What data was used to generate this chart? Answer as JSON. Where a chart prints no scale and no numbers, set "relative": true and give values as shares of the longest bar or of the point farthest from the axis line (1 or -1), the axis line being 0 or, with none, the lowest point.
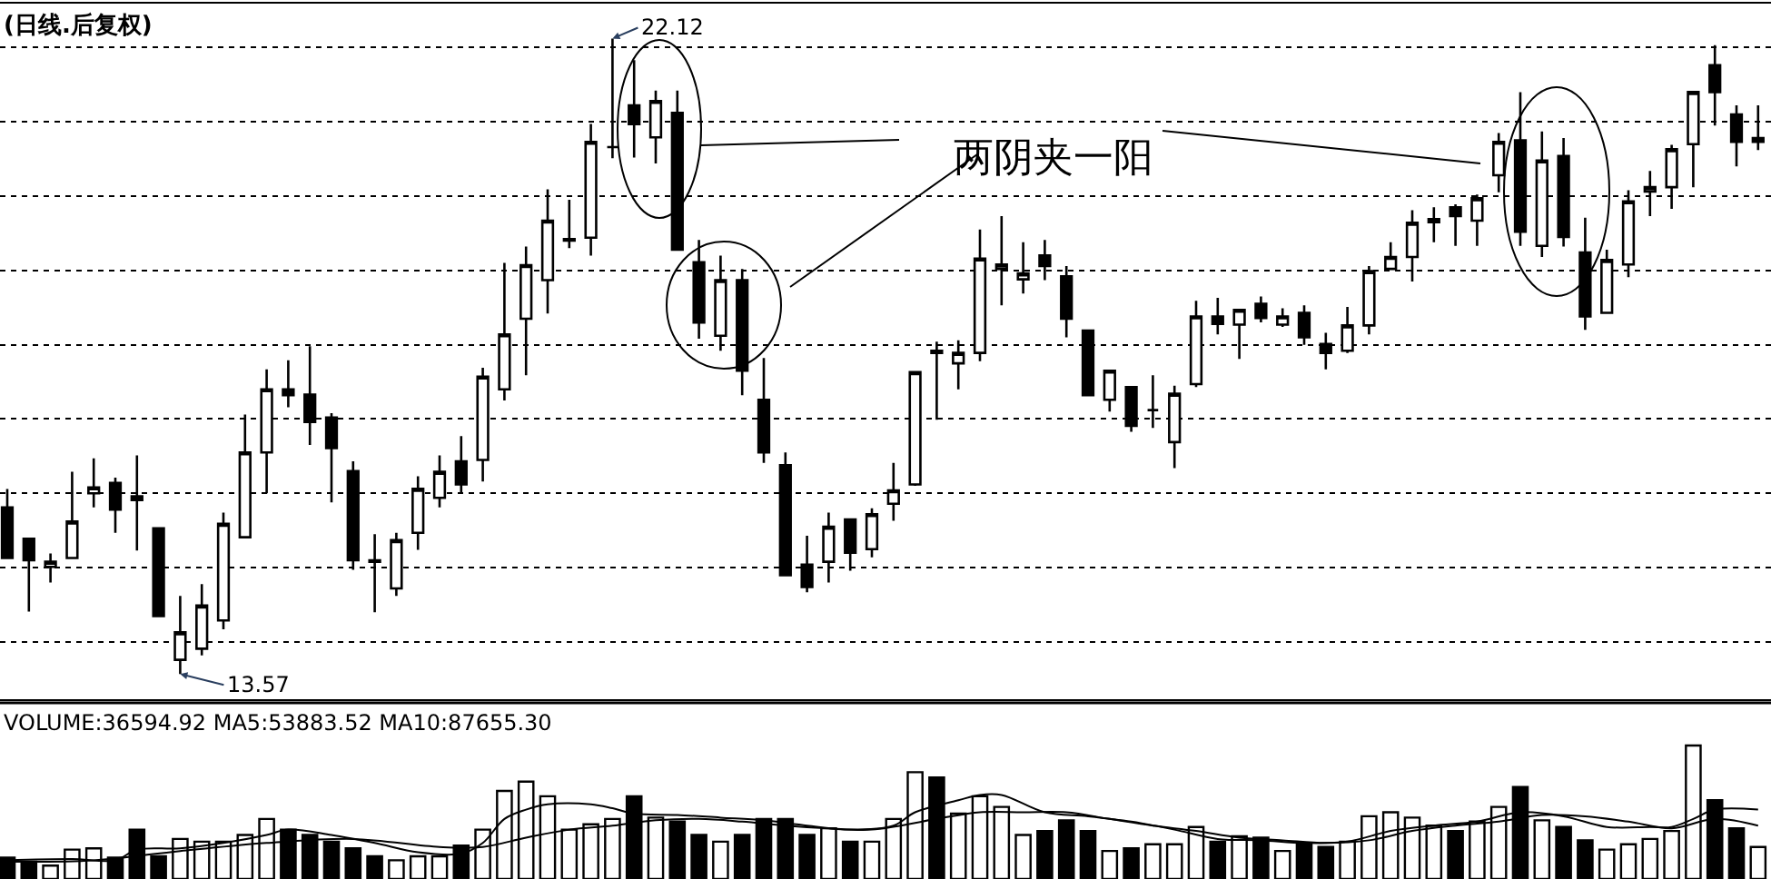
{
  "chart_data": [
    {
      "type": "candlestick",
      "title": "(日线.后复权)",
      "categories": [
        null,
        null,
        null,
        null,
        null,
        null,
        null,
        null,
        null,
        null,
        null,
        null,
        null,
        null,
        null,
        null,
        null,
        null,
        null,
        null,
        null,
        null,
        null,
        null,
        null,
        null,
        null,
        null,
        null,
        null,
        null,
        null,
        null,
        null,
        null,
        null,
        null,
        null,
        null,
        null,
        null,
        null,
        null,
        null,
        null,
        null,
        null,
        null,
        null,
        null,
        null,
        null,
        null,
        null,
        null,
        null,
        null,
        null,
        null,
        null,
        null,
        null,
        null,
        null,
        null,
        null,
        null,
        null,
        null,
        null,
        null,
        null,
        null,
        null,
        null,
        null,
        null,
        null,
        null,
        null,
        null,
        null
      ],
      "ohlc": [
        [
          15.81,
          16.06,
          15.13,
          15.13
        ],
        [
          15.39,
          15.39,
          14.41,
          15.1
        ],
        [
          15.01,
          15.19,
          14.8,
          15.08
        ],
        [
          15.13,
          16.29,
          15.13,
          15.62
        ],
        [
          16.0,
          16.47,
          15.81,
          16.08
        ],
        [
          16.14,
          16.21,
          15.47,
          15.78
        ],
        [
          15.96,
          16.51,
          15.23,
          15.91
        ],
        [
          15.53,
          15.53,
          14.35,
          14.35
        ],
        [
          13.76,
          14.62,
          13.57,
          14.13
        ],
        [
          13.91,
          14.78,
          13.82,
          14.49
        ],
        [
          14.29,
          15.74,
          14.17,
          15.59
        ],
        [
          15.41,
          17.06,
          15.41,
          16.55
        ],
        [
          16.55,
          17.67,
          16.0,
          17.4
        ],
        [
          17.4,
          17.79,
          17.16,
          17.32
        ],
        [
          17.33,
          17.98,
          16.65,
          16.96
        ],
        [
          17.02,
          17.08,
          15.88,
          16.61
        ],
        [
          16.3,
          16.43,
          14.97,
          15.1
        ],
        [
          15.1,
          15.45,
          14.4,
          15.08
        ],
        [
          14.72,
          15.47,
          14.62,
          15.37
        ],
        [
          15.47,
          16.23,
          15.24,
          16.06
        ],
        [
          15.94,
          16.51,
          15.81,
          16.29
        ],
        [
          16.43,
          16.77,
          16.0,
          16.12
        ],
        [
          16.45,
          17.69,
          16.16,
          17.57
        ],
        [
          17.4,
          19.1,
          17.25,
          18.14
        ],
        [
          18.35,
          19.32,
          17.59,
          19.07
        ],
        [
          18.87,
          20.09,
          18.42,
          19.67
        ],
        [
          19.4,
          19.95,
          19.3,
          19.42
        ],
        [
          19.44,
          20.97,
          19.2,
          20.73
        ],
        [
          20.66,
          22.12,
          20.51,
          20.66
        ],
        [
          21.22,
          21.83,
          20.52,
          20.97
        ],
        [
          20.79,
          21.42,
          20.44,
          21.28
        ],
        [
          21.12,
          21.42,
          19.28,
          19.28
        ],
        [
          19.11,
          19.41,
          18.08,
          18.3
        ],
        [
          18.12,
          19.2,
          17.92,
          18.87
        ],
        [
          18.87,
          19.02,
          17.32,
          17.65
        ],
        [
          17.26,
          17.82,
          16.41,
          16.55
        ],
        [
          16.38,
          16.55,
          14.9,
          14.9
        ],
        [
          15.04,
          15.43,
          14.67,
          14.74
        ],
        [
          15.08,
          15.74,
          14.8,
          15.55
        ],
        [
          15.65,
          15.65,
          14.96,
          15.2
        ],
        [
          15.25,
          15.8,
          15.14,
          15.72
        ],
        [
          15.86,
          16.41,
          15.63,
          16.04
        ],
        [
          16.12,
          17.63,
          16.1,
          17.63
        ],
        [
          17.92,
          18.04,
          16.99,
          17.89
        ],
        [
          17.75,
          18.06,
          17.4,
          17.89
        ],
        [
          17.89,
          19.55,
          17.78,
          19.16
        ],
        [
          19.02,
          19.73,
          18.53,
          19.08
        ],
        [
          18.88,
          19.38,
          18.69,
          18.96
        ],
        [
          19.2,
          19.41,
          18.87,
          19.06
        ],
        [
          18.92,
          19.06,
          18.1,
          18.35
        ],
        [
          18.19,
          18.19,
          17.32,
          17.32
        ],
        [
          17.26,
          17.65,
          17.1,
          17.65
        ],
        [
          17.43,
          17.43,
          16.83,
          16.91
        ],
        [
          17.12,
          17.59,
          16.88,
          17.12
        ],
        [
          16.69,
          17.45,
          16.34,
          17.34
        ],
        [
          17.47,
          18.59,
          17.43,
          18.38
        ],
        [
          18.38,
          18.63,
          18.14,
          18.28
        ],
        [
          18.27,
          18.47,
          17.81,
          18.47
        ],
        [
          18.55,
          18.65,
          18.3,
          18.36
        ],
        [
          18.27,
          18.49,
          18.24,
          18.38
        ],
        [
          18.43,
          18.53,
          18.0,
          18.1
        ],
        [
          18.01,
          18.16,
          17.67,
          17.89
        ],
        [
          17.92,
          18.51,
          17.89,
          18.26
        ],
        [
          18.26,
          19.06,
          18.14,
          18.99
        ],
        [
          19.02,
          19.38,
          19.02,
          19.18
        ],
        [
          19.18,
          19.81,
          18.85,
          19.64
        ],
        [
          19.65,
          19.85,
          19.38,
          19.69
        ],
        [
          19.85,
          19.89,
          19.33,
          19.73
        ],
        [
          19.67,
          20.02,
          19.33,
          19.97
        ],
        [
          20.28,
          20.85,
          20.05,
          20.73
        ],
        [
          20.75,
          21.4,
          19.33,
          19.52
        ],
        [
          19.33,
          20.87,
          19.18,
          20.48
        ],
        [
          20.54,
          20.78,
          19.32,
          19.45
        ],
        [
          19.24,
          19.71,
          18.2,
          18.38
        ],
        [
          18.43,
          19.28,
          18.43,
          19.14
        ],
        [
          19.08,
          20.08,
          18.91,
          19.93
        ],
        [
          20.06,
          20.34,
          19.73,
          20.12
        ],
        [
          20.12,
          20.69,
          19.83,
          20.63
        ],
        [
          20.7,
          21.4,
          20.12,
          21.4
        ],
        [
          21.76,
          22.03,
          20.95,
          21.4
        ],
        [
          21.1,
          21.22,
          20.4,
          20.73
        ],
        [
          20.73,
          21.22,
          20.62,
          20.78
        ]
      ],
      "ylim": [
        13.23,
        22.59
      ],
      "yticks": [
        {
          "value": 14,
          "label": null
        },
        {
          "value": 15,
          "label": null
        },
        {
          "value": 16,
          "label": null
        },
        {
          "value": 17,
          "label": null
        },
        {
          "value": 18,
          "label": null
        },
        {
          "value": 19,
          "label": null
        },
        {
          "value": 20,
          "label": null
        },
        {
          "value": 21,
          "label": null
        },
        {
          "value": 22,
          "label": null
        }
      ],
      "grid": "y",
      "tick_labels": false,
      "annotations": [
        "22.12",
        "13.57",
        "两阴夹一阳"
      ]
    },
    {
      "type": "bar",
      "title": "VOLUME:36594.92 MA5:53883.52 MA10:87655.30",
      "relative": true,
      "tick_labels": false,
      "categories": [
        null,
        null,
        null,
        null,
        null,
        null,
        null,
        null,
        null,
        null,
        null,
        null,
        null,
        null,
        null,
        null,
        null,
        null,
        null,
        null,
        null,
        null,
        null,
        null,
        null,
        null,
        null,
        null,
        null,
        null,
        null,
        null,
        null,
        null,
        null,
        null,
        null,
        null,
        null,
        null,
        null,
        null,
        null,
        null,
        null,
        null,
        null,
        null,
        null,
        null,
        null,
        null,
        null,
        null,
        null,
        null,
        null,
        null,
        null,
        null,
        null,
        null,
        null,
        null,
        null,
        null,
        null,
        null,
        null,
        null,
        null,
        null,
        null,
        null,
        null,
        null,
        null,
        null,
        null,
        null,
        null,
        null
      ],
      "series": [
        {
          "type": "bar",
          "values": [
            0.16,
            0.13,
            0.1,
            0.22,
            0.23,
            0.16,
            0.37,
            0.17,
            0.3,
            0.28,
            0.28,
            0.33,
            0.45,
            0.37,
            0.33,
            0.28,
            0.23,
            0.17,
            0.14,
            0.17,
            0.17,
            0.25,
            0.37,
            0.66,
            0.73,
            0.62,
            0.37,
            0.41,
            0.45,
            0.62,
            0.46,
            0.43,
            0.33,
            0.28,
            0.33,
            0.45,
            0.45,
            0.33,
            0.38,
            0.28,
            0.28,
            0.45,
            0.8,
            0.76,
            0.49,
            0.62,
            0.54,
            0.33,
            0.36,
            0.44,
            0.36,
            0.21,
            0.23,
            0.26,
            0.26,
            0.39,
            0.28,
            0.32,
            0.31,
            0.21,
            0.27,
            0.24,
            0.28,
            0.47,
            0.5,
            0.46,
            0.4,
            0.36,
            0.43,
            0.54,
            0.69,
            0.44,
            0.39,
            0.29,
            0.22,
            0.26,
            0.3,
            0.36,
            1,
            0.59,
            0.38,
            0.24
          ],
          "colors": [
            "#000000",
            "#000000",
            "#ffffff",
            "#ffffff",
            "#ffffff",
            "#000000",
            "#000000",
            "#000000",
            "#ffffff",
            "#ffffff",
            "#ffffff",
            "#ffffff",
            "#ffffff",
            "#000000",
            "#000000",
            "#000000",
            "#000000",
            "#000000",
            "#ffffff",
            "#ffffff",
            "#ffffff",
            "#000000",
            "#ffffff",
            "#ffffff",
            "#ffffff",
            "#ffffff",
            "#ffffff",
            "#ffffff",
            "#ffffff",
            "#000000",
            "#ffffff",
            "#000000",
            "#000000",
            "#ffffff",
            "#000000",
            "#000000",
            "#000000",
            "#000000",
            "#ffffff",
            "#000000",
            "#ffffff",
            "#ffffff",
            "#ffffff",
            "#000000",
            "#ffffff",
            "#ffffff",
            "#ffffff",
            "#ffffff",
            "#000000",
            "#000000",
            "#000000",
            "#ffffff",
            "#000000",
            "#ffffff",
            "#ffffff",
            "#ffffff",
            "#000000",
            "#ffffff",
            "#000000",
            "#ffffff",
            "#000000",
            "#000000",
            "#ffffff",
            "#ffffff",
            "#ffffff",
            "#ffffff",
            "#ffffff",
            "#000000",
            "#ffffff",
            "#ffffff",
            "#000000",
            "#ffffff",
            "#000000",
            "#000000",
            "#ffffff",
            "#ffffff",
            "#ffffff",
            "#ffffff",
            "#ffffff",
            "#000000",
            "#000000",
            "#ffffff"
          ]
        },
        {
          "type": "line",
          "color": "#000000",
          "values": [
            0.14,
            null,
            null,
            0.15,
            null,
            0.14,
            0.22,
            null,
            0.23,
            null,
            0.27,
            null,
            0.33,
            0.37,
            null,
            0.33,
            null,
            0.27,
            null,
            0.2,
            null,
            0.19,
            0.27,
            0.45,
            0.52,
            0.56,
            null,
            0.56,
            0.53,
            0.49,
            null,
            0.48,
            null,
            0.46,
            null,
            0.44,
            null,
            0.4,
            null,
            0.37,
            null,
            0.4,
            0.5,
            null,
            0.59,
            0.63,
            0.63,
            null,
            0.5,
            null,
            0.47,
            null,
            0.43,
            null,
            0.37,
            null,
            0.3,
            null,
            0.29,
            null,
            0.27,
            null,
            0.28,
            null,
            0.36,
            null,
            0.4,
            null,
            0.43,
            null,
            0.5,
            null,
            0.47,
            null,
            0.39,
            null,
            0.39,
            0.39,
            0.45,
            0.52,
            null,
            0.52
          ]
        },
        {
          "type": "line",
          "color": "#000000",
          "values": [
            0.13,
            null,
            null,
            null,
            0.14,
            null,
            null,
            null,
            0.21,
            null,
            null,
            null,
            0.27,
            null,
            null,
            null,
            0.3,
            null,
            null,
            null,
            0.24,
            null,
            0.24,
            null,
            0.31,
            null,
            0.37,
            null,
            0.4,
            null,
            0.44,
            null,
            0.45,
            null,
            0.43,
            null,
            0.4,
            null,
            0.38,
            null,
            0.37,
            null,
            null,
            0.45,
            null,
            0.5,
            null,
            0.5,
            null,
            0.5,
            null,
            0.45,
            null,
            0.4,
            null,
            0.36,
            null,
            0.31,
            null,
            0.29,
            null,
            0.27,
            null,
            0.29,
            null,
            0.36,
            null,
            0.4,
            null,
            0.43,
            null,
            0.48,
            null,
            0.47,
            null,
            0.43,
            null,
            0.38,
            null,
            0.45,
            null,
            0.4
          ]
        }
      ]
    }
  ]
}
